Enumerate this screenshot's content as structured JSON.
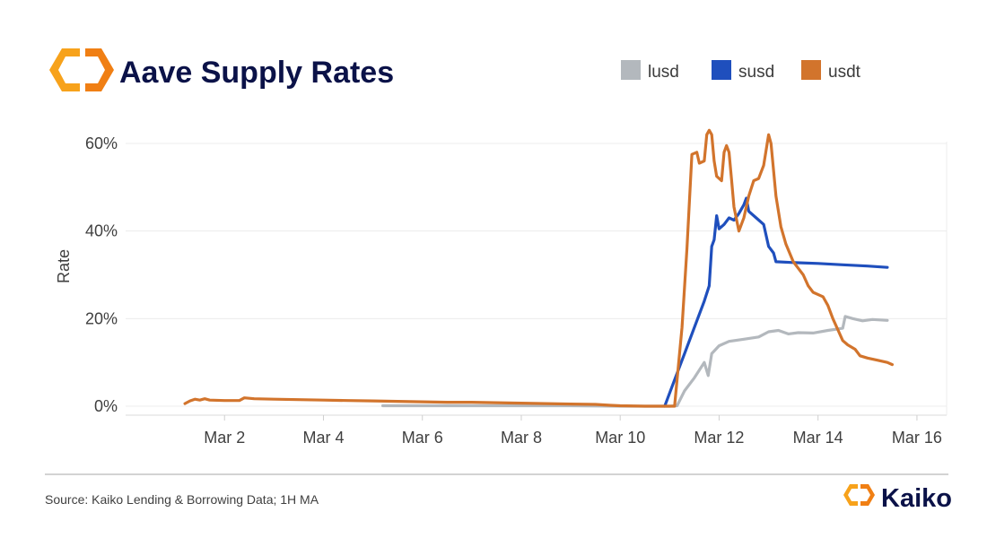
{
  "header": {
    "title": "Aave Supply Rates"
  },
  "footer": {
    "source": "Source: Kaiko Lending & Borrowing Data; 1H MA",
    "brand": "Kaiko"
  },
  "colors": {
    "lusd": "#b3b8bd",
    "susd": "#1f4fbd",
    "usdt": "#d2742c",
    "title": "#0b1248",
    "logo_orange": "#f7a21b",
    "logo_orange_dark": "#f07f14"
  },
  "chart_data": {
    "type": "line",
    "title": "Aave Supply Rates",
    "xlabel": "",
    "ylabel": "Rate",
    "xlim": [
      0,
      16.6
    ],
    "ylim": [
      0,
      60
    ],
    "x_ticks": [
      {
        "v": 2,
        "label": "Mar 2"
      },
      {
        "v": 4,
        "label": "Mar 4"
      },
      {
        "v": 6,
        "label": "Mar 6"
      },
      {
        "v": 8,
        "label": "Mar 8"
      },
      {
        "v": 10,
        "label": "Mar 10"
      },
      {
        "v": 12,
        "label": "Mar 12"
      },
      {
        "v": 14,
        "label": "Mar 14"
      },
      {
        "v": 16,
        "label": "Mar 16"
      }
    ],
    "y_ticks": [
      {
        "v": 0,
        "label": "0%"
      },
      {
        "v": 20,
        "label": "20%"
      },
      {
        "v": 40,
        "label": "40%"
      },
      {
        "v": 60,
        "label": "60%"
      }
    ],
    "grid": true,
    "legend_position": "top-right",
    "series": [
      {
        "name": "lusd",
        "color": "#b3b8bd",
        "points": [
          [
            5.2,
            0.1
          ],
          [
            7,
            0.1
          ],
          [
            9,
            0.1
          ],
          [
            10,
            0.0
          ],
          [
            11,
            0.0
          ],
          [
            11.15,
            0.1
          ],
          [
            11.3,
            3.5
          ],
          [
            11.5,
            6.5
          ],
          [
            11.7,
            10.0
          ],
          [
            11.78,
            7.0
          ],
          [
            11.85,
            12.0
          ],
          [
            12,
            13.8
          ],
          [
            12.2,
            14.8
          ],
          [
            12.5,
            15.3
          ],
          [
            12.8,
            15.8
          ],
          [
            13,
            17.0
          ],
          [
            13.2,
            17.3
          ],
          [
            13.4,
            16.5
          ],
          [
            13.6,
            16.8
          ],
          [
            13.9,
            16.7
          ],
          [
            14.2,
            17.3
          ],
          [
            14.5,
            17.8
          ],
          [
            14.55,
            20.5
          ],
          [
            14.7,
            20.0
          ],
          [
            14.9,
            19.5
          ],
          [
            15.1,
            19.8
          ],
          [
            15.4,
            19.6
          ]
        ]
      },
      {
        "name": "susd",
        "color": "#1f4fbd",
        "points": [
          [
            10.9,
            0.0
          ],
          [
            11.1,
            6.0
          ],
          [
            11.3,
            12.0
          ],
          [
            11.5,
            18.0
          ],
          [
            11.7,
            24.0
          ],
          [
            11.8,
            27.5
          ],
          [
            11.85,
            36.5
          ],
          [
            11.9,
            38.0
          ],
          [
            11.95,
            43.5
          ],
          [
            12,
            40.5
          ],
          [
            12.1,
            41.5
          ],
          [
            12.2,
            43.0
          ],
          [
            12.3,
            42.5
          ],
          [
            12.4,
            44.0
          ],
          [
            12.5,
            46.0
          ],
          [
            12.55,
            47.5
          ],
          [
            12.6,
            44.5
          ],
          [
            12.75,
            43.0
          ],
          [
            12.9,
            41.5
          ],
          [
            13,
            36.5
          ],
          [
            13.1,
            35.0
          ],
          [
            13.15,
            33.0
          ],
          [
            13.5,
            32.8
          ],
          [
            14,
            32.6
          ],
          [
            14.5,
            32.3
          ],
          [
            15,
            32.0
          ],
          [
            15.4,
            31.7
          ]
        ]
      },
      {
        "name": "usdt",
        "color": "#d2742c",
        "points": [
          [
            1.2,
            0.6
          ],
          [
            1.3,
            1.2
          ],
          [
            1.4,
            1.6
          ],
          [
            1.5,
            1.4
          ],
          [
            1.6,
            1.7
          ],
          [
            1.7,
            1.4
          ],
          [
            2,
            1.3
          ],
          [
            2.3,
            1.3
          ],
          [
            2.4,
            1.9
          ],
          [
            2.6,
            1.7
          ],
          [
            3,
            1.6
          ],
          [
            3.5,
            1.5
          ],
          [
            4,
            1.4
          ],
          [
            4.5,
            1.3
          ],
          [
            5,
            1.2
          ],
          [
            5.5,
            1.1
          ],
          [
            6,
            1.0
          ],
          [
            6.5,
            0.9
          ],
          [
            7,
            0.9
          ],
          [
            7.5,
            0.8
          ],
          [
            8,
            0.7
          ],
          [
            8.5,
            0.6
          ],
          [
            9,
            0.5
          ],
          [
            9.5,
            0.4
          ],
          [
            9.8,
            0.2
          ],
          [
            10,
            0.1
          ],
          [
            10.5,
            0.0
          ],
          [
            11,
            0.0
          ],
          [
            11.1,
            0.0
          ],
          [
            11.25,
            18.0
          ],
          [
            11.35,
            36.0
          ],
          [
            11.45,
            57.5
          ],
          [
            11.55,
            58.0
          ],
          [
            11.6,
            55.5
          ],
          [
            11.7,
            56.0
          ],
          [
            11.75,
            62.0
          ],
          [
            11.8,
            63.0
          ],
          [
            11.85,
            62.0
          ],
          [
            11.9,
            56.0
          ],
          [
            11.95,
            52.5
          ],
          [
            12.05,
            51.5
          ],
          [
            12.1,
            58.0
          ],
          [
            12.15,
            59.5
          ],
          [
            12.2,
            58.0
          ],
          [
            12.25,
            52.0
          ],
          [
            12.3,
            45.5
          ],
          [
            12.4,
            40.0
          ],
          [
            12.5,
            43.0
          ],
          [
            12.6,
            48.0
          ],
          [
            12.7,
            51.5
          ],
          [
            12.8,
            52.0
          ],
          [
            12.9,
            55.0
          ],
          [
            13,
            62.0
          ],
          [
            13.05,
            60.0
          ],
          [
            13.15,
            48.0
          ],
          [
            13.25,
            41.0
          ],
          [
            13.35,
            37.0
          ],
          [
            13.5,
            33.0
          ],
          [
            13.7,
            30.0
          ],
          [
            13.8,
            27.5
          ],
          [
            13.9,
            26.0
          ],
          [
            14.1,
            25.0
          ],
          [
            14.2,
            23.0
          ],
          [
            14.3,
            20.0
          ],
          [
            14.4,
            17.5
          ],
          [
            14.5,
            15.0
          ],
          [
            14.6,
            14.0
          ],
          [
            14.75,
            13.0
          ],
          [
            14.85,
            11.5
          ],
          [
            15,
            11.0
          ],
          [
            15.2,
            10.5
          ],
          [
            15.4,
            10.0
          ],
          [
            15.5,
            9.5
          ]
        ]
      }
    ]
  }
}
